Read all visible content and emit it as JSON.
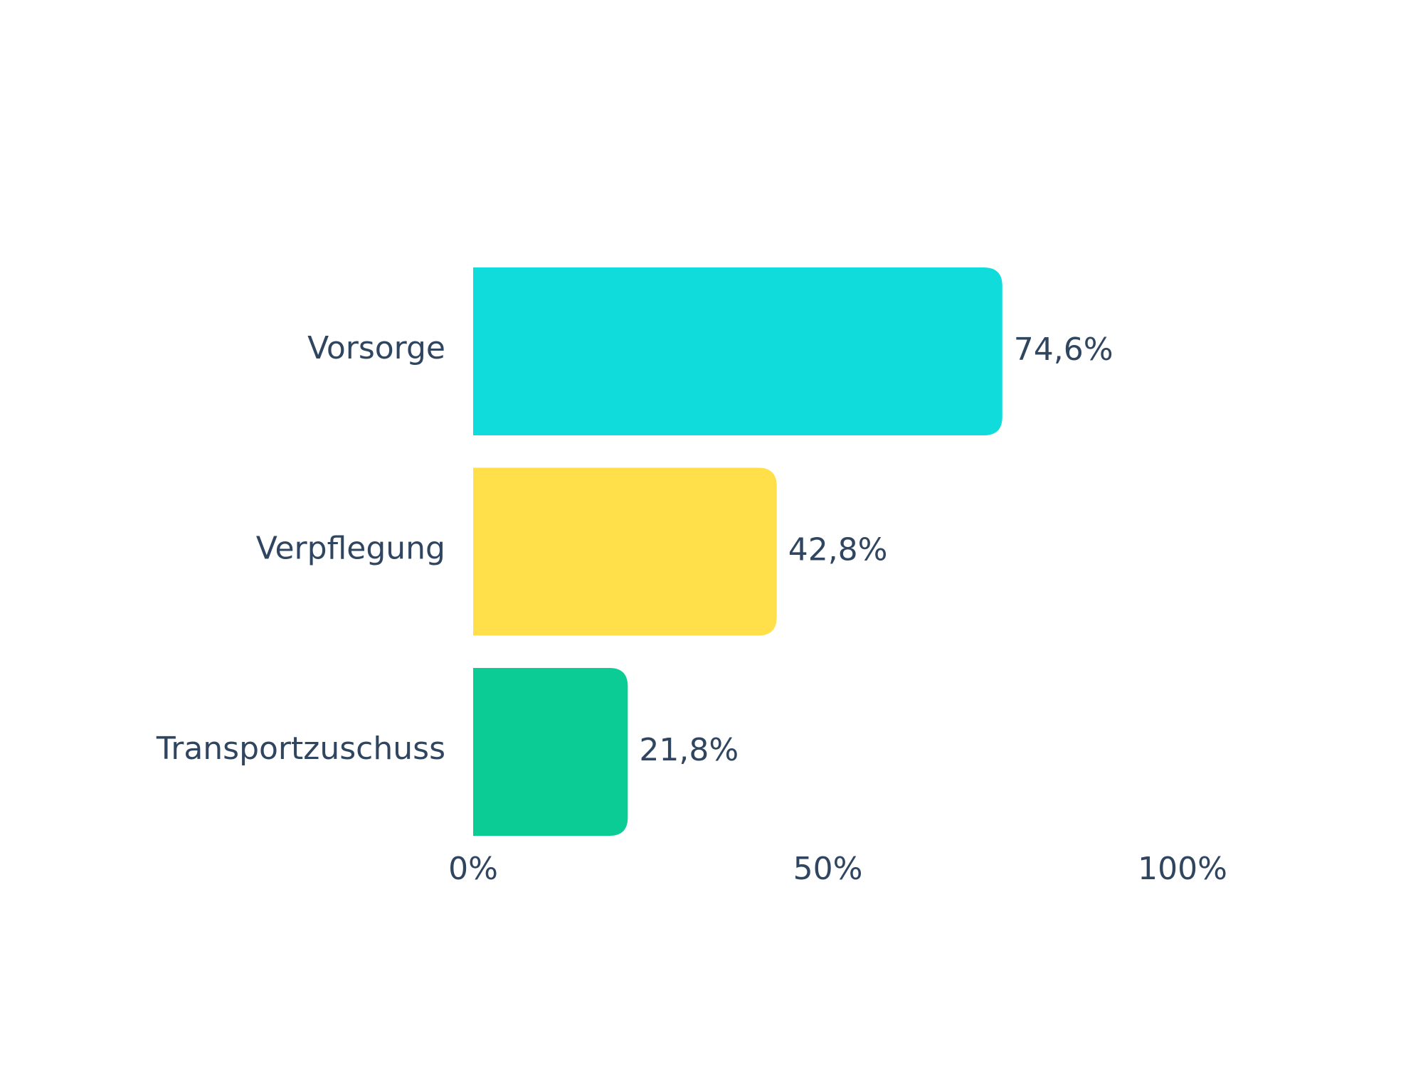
{
  "chart_data": {
    "type": "bar",
    "orientation": "horizontal",
    "categories": [
      "Vorsorge",
      "Verpflegung",
      "Transportzuschuss"
    ],
    "values": [
      74.6,
      42.8,
      21.8
    ],
    "value_labels": [
      "74,6%",
      "42,8%",
      "21,8%"
    ],
    "colors": [
      "#10dcdc",
      "#ffe04a",
      "#0acc94"
    ],
    "xlim": [
      0,
      100
    ],
    "xticks": [
      {
        "value": 0,
        "label": "0%"
      },
      {
        "value": 50,
        "label": "50%"
      },
      {
        "value": 100,
        "label": "100%"
      }
    ],
    "grid": false
  }
}
